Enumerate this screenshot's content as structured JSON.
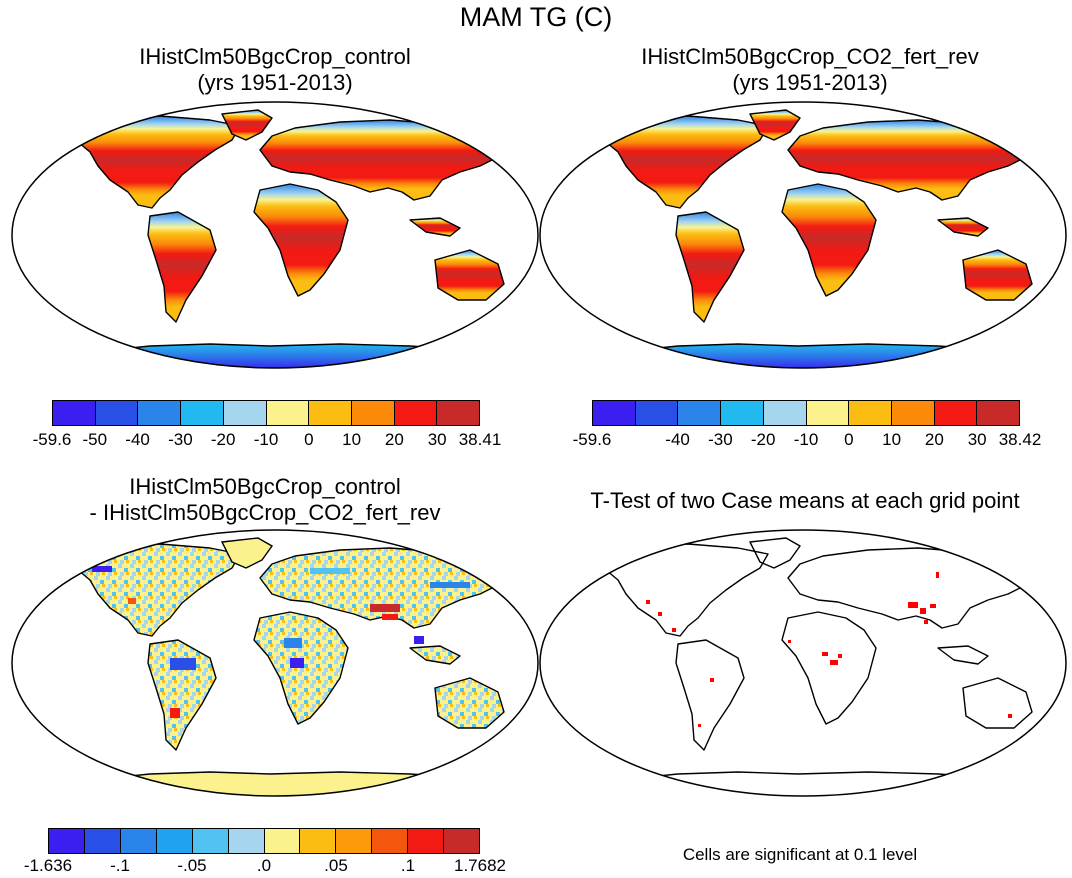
{
  "figure_title": "MAM TG (C)",
  "panels": {
    "top_left": {
      "title_line1": "IHistClm50BgcCrop_control",
      "title_line2": "(yrs 1951-2013)"
    },
    "top_right": {
      "title_line1": "IHistClm50BgcCrop_CO2_fert_rev",
      "title_line2": "(yrs 1951-2013)"
    },
    "bottom_left": {
      "title_line1": "IHistClm50BgcCrop_control",
      "title_line2": "- IHistClm50BgcCrop_CO2_fert_rev"
    },
    "bottom_right": {
      "title_line1": "T-Test of two Case means at each grid point",
      "note": "Cells are significant at 0.1 level"
    }
  },
  "colorbars": {
    "abs_top_left": {
      "colors": [
        "#3a1ff0",
        "#2a4fe6",
        "#2b84ea",
        "#22b8f0",
        "#a6d6ee",
        "#fbf28e",
        "#fbbd12",
        "#fb8a0b",
        "#f21a12",
        "#c82a2a"
      ],
      "ticks": [
        "-59.6",
        "-50",
        "-40",
        "-30",
        "-20",
        "-10",
        "0",
        "10",
        "20",
        "30",
        "38.41"
      ]
    },
    "abs_top_right": {
      "colors": [
        "#3a1ff0",
        "#2a4fe6",
        "#2b84ea",
        "#22b8f0",
        "#a6d6ee",
        "#fbf28e",
        "#fbbd12",
        "#fb8a0b",
        "#f21a12",
        "#c82a2a"
      ],
      "ticks": [
        "-59.6",
        "",
        "-40",
        "-30",
        "-20",
        "-10",
        "0",
        "10",
        "20",
        "30",
        "38.42"
      ]
    },
    "diff": {
      "colors": [
        "#3a1ff0",
        "#2a4fe6",
        "#2b84ea",
        "#1fa2f0",
        "#52c2f0",
        "#a6d6ee",
        "#fbf28e",
        "#fbbd12",
        "#fb9a0b",
        "#f5560e",
        "#f21a12",
        "#c82a2a"
      ],
      "ticks": [
        "-1.636",
        "-.1",
        "-.05",
        ".0",
        ".05",
        ".1",
        "1.7682"
      ]
    }
  },
  "colors": {
    "ocean": "#ffffff",
    "land_outline": "#000000",
    "significant_cell": "#ff0000",
    "diff_land_base": "#fbf28e"
  }
}
